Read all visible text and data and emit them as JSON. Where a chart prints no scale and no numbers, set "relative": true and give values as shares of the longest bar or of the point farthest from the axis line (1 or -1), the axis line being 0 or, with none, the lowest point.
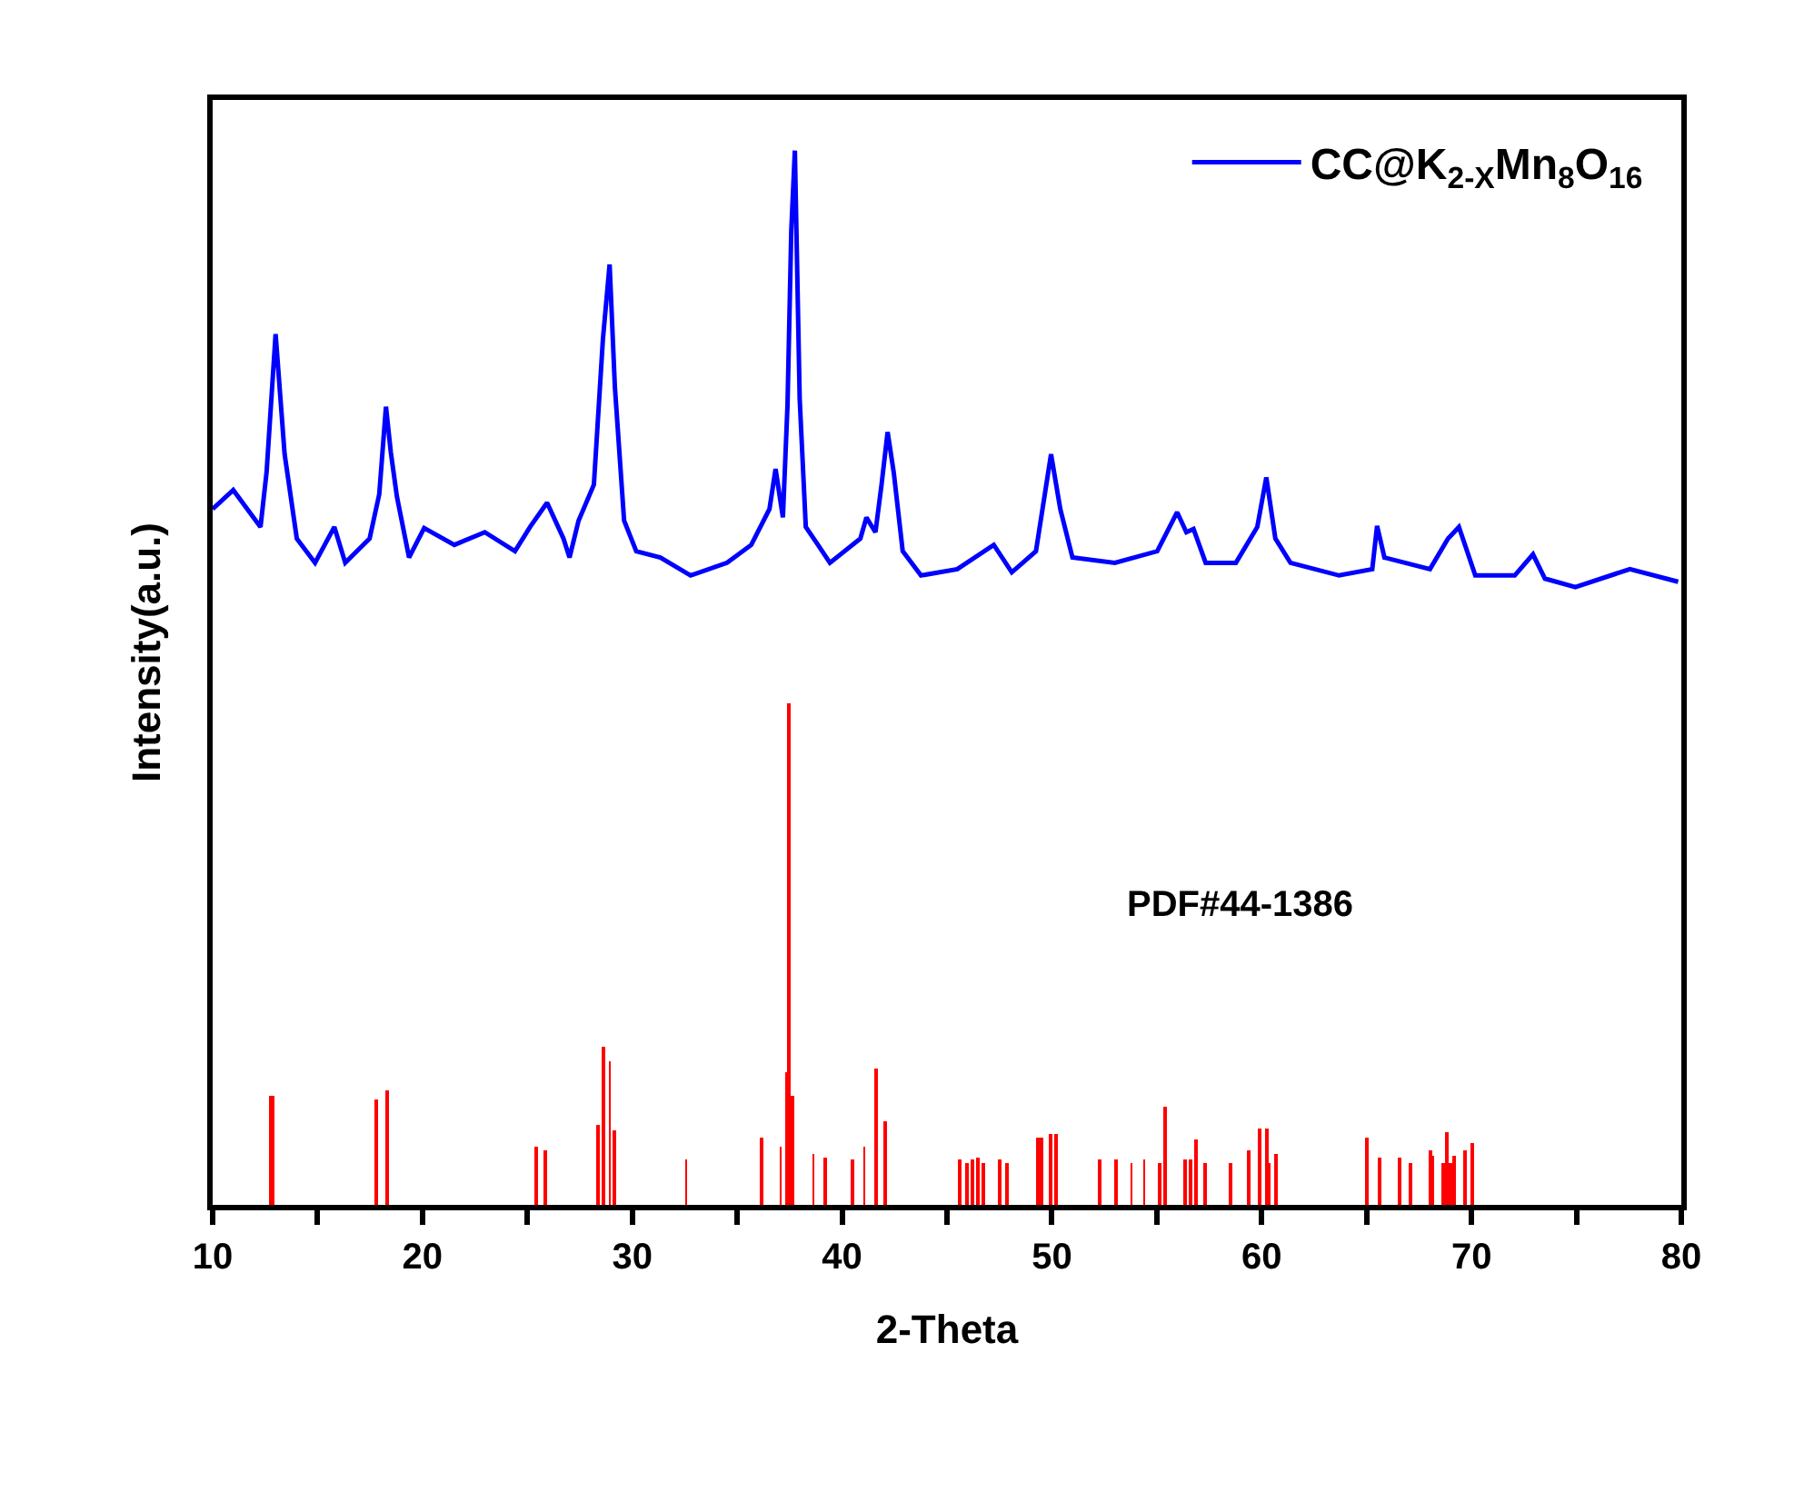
{
  "chart_data": {
    "type": "line",
    "relative": true,
    "xlabel": "2-Theta",
    "ylabel": "Intensity(a.u.)",
    "xlim": [
      10,
      80
    ],
    "xticks": [
      10,
      {
        "value": 15,
        "label": null
      },
      20,
      {
        "value": 25,
        "label": null
      },
      30,
      {
        "value": 35,
        "label": null
      },
      40,
      {
        "value": 45,
        "label": null
      },
      50,
      {
        "value": 55,
        "label": null
      },
      60,
      {
        "value": 65,
        "label": null
      },
      70,
      {
        "value": 75,
        "label": null
      },
      80
    ],
    "legend": "top right",
    "tick_labels": "x",
    "annotations": [
      "PDF#44-1386"
    ],
    "series": [
      {
        "name": "CC@K$_{2-X}$Mn$_{8}$O$_{16}$",
        "color": "#0000ff",
        "x": [
          10.0,
          10.98,
          12.28,
          12.57,
          13.0,
          13.43,
          14.01,
          14.88,
          15.8,
          16.32,
          17.48,
          17.94,
          18.26,
          18.49,
          18.78,
          19.36,
          20.08,
          21.52,
          22.97,
          24.41,
          25.13,
          25.94,
          26.72,
          27.01,
          27.44,
          28.17,
          28.6,
          28.92,
          29.17,
          29.61,
          30.19,
          31.34,
          32.78,
          34.52,
          35.67,
          36.54,
          36.83,
          37.18,
          37.4,
          37.58,
          37.75,
          37.98,
          38.27,
          38.85,
          39.42,
          40.87,
          41.16,
          41.59,
          41.88,
          42.17,
          42.46,
          42.89,
          43.76,
          45.49,
          47.23,
          48.09,
          49.24,
          49.96,
          50.4,
          50.98,
          53.0,
          55.02,
          55.97,
          56.41,
          56.75,
          57.33,
          58.77,
          59.79,
          60.22,
          60.65,
          61.37,
          63.69,
          65.27,
          65.5,
          65.85,
          68.02,
          68.88,
          69.4,
          70.18,
          72.06,
          72.93,
          73.5,
          74.95,
          77.55,
          79.85
        ],
        "values": [
          0.66,
          0.678,
          0.643,
          0.695,
          0.826,
          0.712,
          0.632,
          0.609,
          0.643,
          0.609,
          0.632,
          0.674,
          0.757,
          0.714,
          0.672,
          0.614,
          0.642,
          0.626,
          0.638,
          0.62,
          0.643,
          0.666,
          0.632,
          0.614,
          0.649,
          0.683,
          0.821,
          0.892,
          0.776,
          0.649,
          0.62,
          0.614,
          0.597,
          0.609,
          0.626,
          0.66,
          0.698,
          0.652,
          0.759,
          0.925,
          1.0,
          0.764,
          0.643,
          0.626,
          0.609,
          0.632,
          0.652,
          0.638,
          0.683,
          0.733,
          0.695,
          0.62,
          0.597,
          0.603,
          0.626,
          0.6,
          0.62,
          0.712,
          0.66,
          0.614,
          0.609,
          0.62,
          0.657,
          0.638,
          0.641,
          0.609,
          0.609,
          0.643,
          0.69,
          0.632,
          0.609,
          0.597,
          0.603,
          0.644,
          0.614,
          0.603,
          0.632,
          0.643,
          0.597,
          0.597,
          0.617,
          0.594,
          0.586,
          0.603,
          0.591
        ]
      },
      {
        "type": "bar",
        "color": "#ff0000",
        "x": [
          12.75,
          12.89,
          17.82,
          18.34,
          25.45,
          25.88,
          28.37,
          28.63,
          28.92,
          29.17,
          32.58,
          36.19,
          37.06,
          37.32,
          37.49,
          37.64,
          38.62,
          39.22,
          40.52,
          41.07,
          41.65,
          42.08,
          45.63,
          45.98,
          46.24,
          46.5,
          46.76,
          47.54,
          47.88,
          49.36,
          49.53,
          49.96,
          50.22,
          52.3,
          53.08,
          53.78,
          54.41,
          55.16,
          55.42,
          56.37,
          56.63,
          56.89,
          57.3,
          58.54,
          59.41,
          59.93,
          60.27,
          60.36,
          60.71,
          65.04,
          65.64,
          66.6,
          67.12,
          68.07,
          68.16,
          68.68,
          68.85,
          69.02,
          69.2,
          69.71,
          70.06
        ],
        "values": [
          0.103,
          0.103,
          0.1,
          0.109,
          0.055,
          0.051,
          0.075,
          0.15,
          0.136,
          0.071,
          0.043,
          0.064,
          0.055,
          0.126,
          0.476,
          0.103,
          0.048,
          0.045,
          0.043,
          0.055,
          0.129,
          0.079,
          0.043,
          0.04,
          0.043,
          0.045,
          0.04,
          0.043,
          0.04,
          0.064,
          0.064,
          0.067,
          0.067,
          0.043,
          0.043,
          0.04,
          0.043,
          0.04,
          0.093,
          0.043,
          0.043,
          0.062,
          0.04,
          0.04,
          0.052,
          0.072,
          0.072,
          0.04,
          0.048,
          0.064,
          0.045,
          0.045,
          0.04,
          0.052,
          0.047,
          0.04,
          0.069,
          0.04,
          0.047,
          0.052,
          0.059
        ]
      }
    ]
  }
}
